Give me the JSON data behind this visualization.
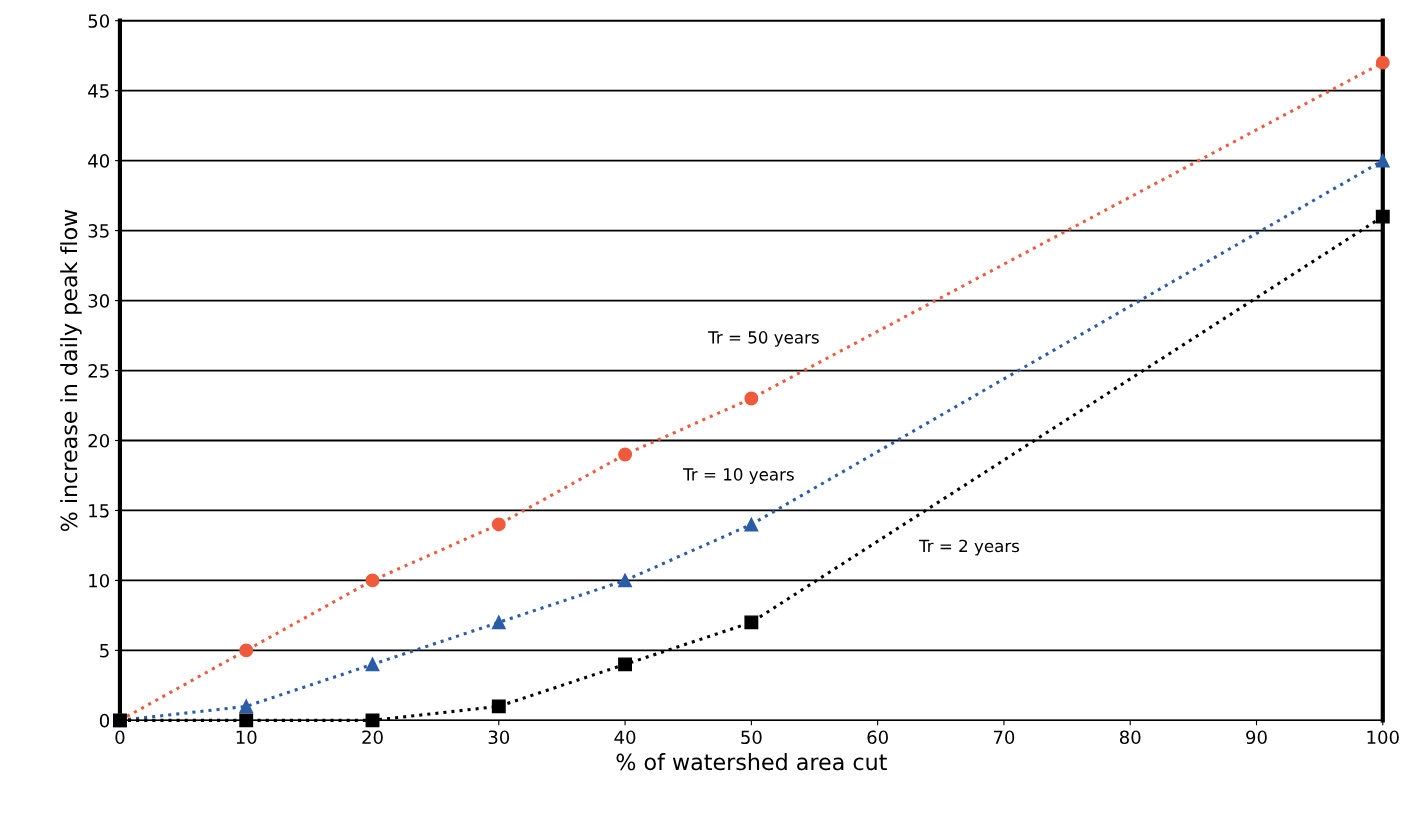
{
  "chart_data": {
    "type": "line",
    "xlabel": "% of watershed area cut",
    "ylabel": "% increase in daily peak flow",
    "x": [
      0,
      10,
      20,
      30,
      40,
      50,
      100
    ],
    "series": [
      {
        "name": "Tr = 50 years",
        "color": "#f05a3c",
        "marker": "circle",
        "values": [
          0,
          5,
          10,
          14,
          19,
          23,
          47
        ]
      },
      {
        "name": "Tr = 10 years",
        "color": "#2a5ca8",
        "marker": "triangle",
        "values": [
          0,
          1,
          4,
          7,
          10,
          14,
          40
        ]
      },
      {
        "name": "Tr = 2 years",
        "color": "#000000",
        "marker": "square",
        "values": [
          0,
          0,
          0,
          1,
          4,
          7,
          36
        ]
      }
    ],
    "line_style": "dotted",
    "xlim": [
      0,
      100
    ],
    "xticks": [
      0,
      10,
      20,
      30,
      40,
      50,
      60,
      70,
      80,
      90,
      100
    ],
    "ylim": [
      0,
      50
    ],
    "yticks": [
      0,
      5,
      10,
      15,
      20,
      25,
      30,
      35,
      40,
      45,
      50
    ],
    "grid": "y",
    "legend": false
  }
}
